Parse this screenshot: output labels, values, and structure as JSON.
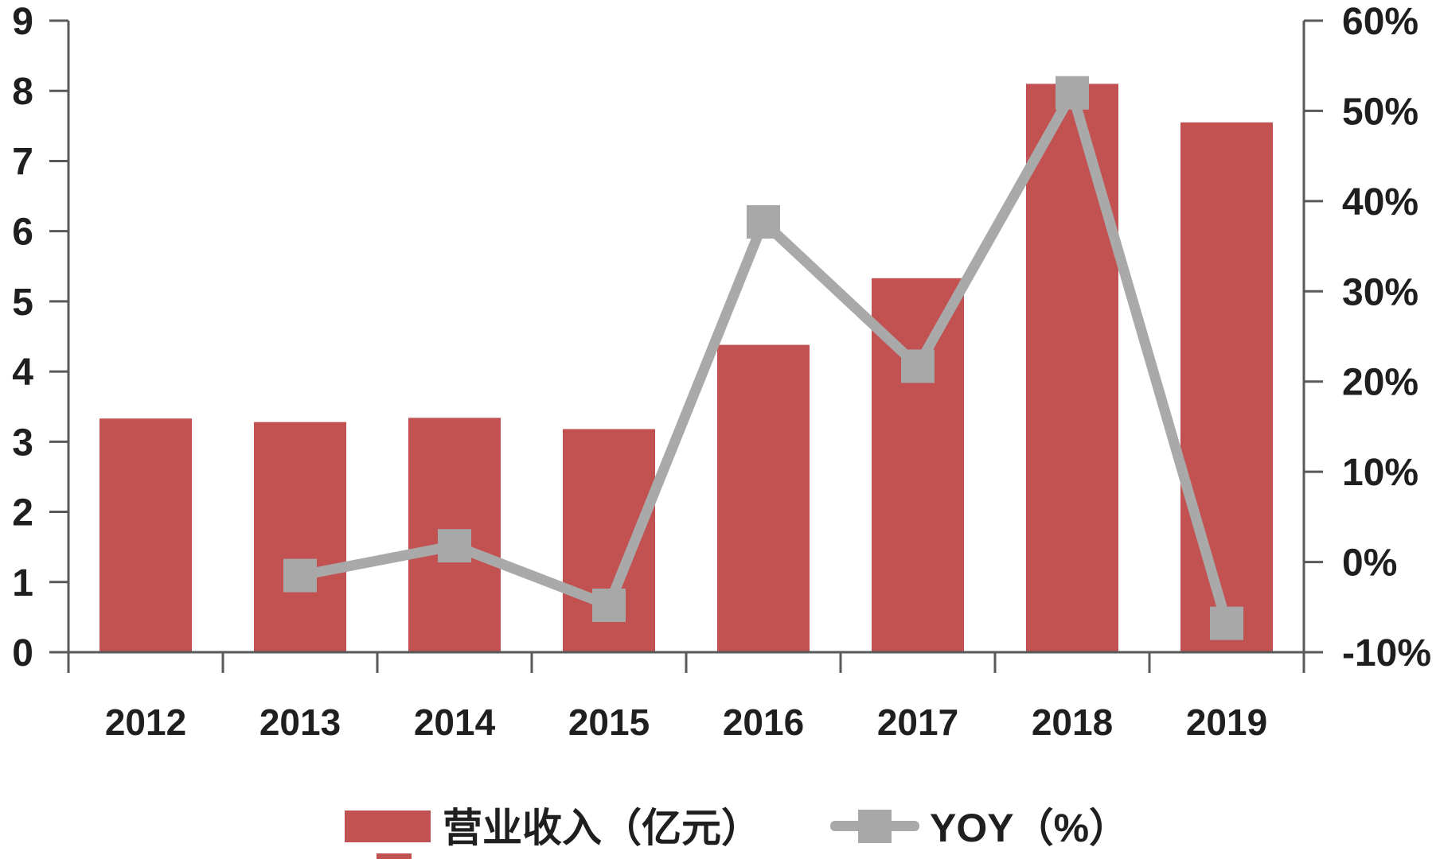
{
  "chart_data": {
    "type": "bar+line",
    "categories": [
      "2012",
      "2013",
      "2014",
      "2015",
      "2016",
      "2017",
      "2018",
      "2019"
    ],
    "series": [
      {
        "name": "营业收入（亿元）",
        "type": "bar",
        "y_axis": "left",
        "color": "#c25151",
        "values": [
          3.33,
          3.28,
          3.34,
          3.18,
          4.38,
          5.33,
          8.1,
          7.55
        ]
      },
      {
        "name": "YOY（%）",
        "type": "line",
        "y_axis": "right",
        "color": "#a9a9a9",
        "marker": "square",
        "values": [
          null,
          -1.5,
          1.8,
          -4.8,
          37.7,
          21.7,
          52.0,
          -6.8
        ]
      }
    ],
    "title": "",
    "xlabel": "",
    "ylabel": "",
    "left_axis": {
      "min": 0,
      "max": 9,
      "step": 1,
      "tick_labels": [
        "0",
        "1",
        "2",
        "3",
        "4",
        "5",
        "6",
        "7",
        "8",
        "9"
      ]
    },
    "right_axis": {
      "min": -10,
      "max": 60,
      "step": 10,
      "tick_labels": [
        "-10%",
        "0%",
        "10%",
        "20%",
        "30%",
        "40%",
        "50%",
        "60%"
      ]
    },
    "grid": false,
    "legend_position": "bottom"
  },
  "legend": {
    "bar_label": "营业收入（亿元）",
    "line_label": "YOY（%）"
  },
  "colors": {
    "bar": "#c25151",
    "line": "#a9a9a9",
    "marker": "#a8a8a8",
    "axis": "#595959",
    "text": "#1f1f1f",
    "background": "#ffffff"
  }
}
